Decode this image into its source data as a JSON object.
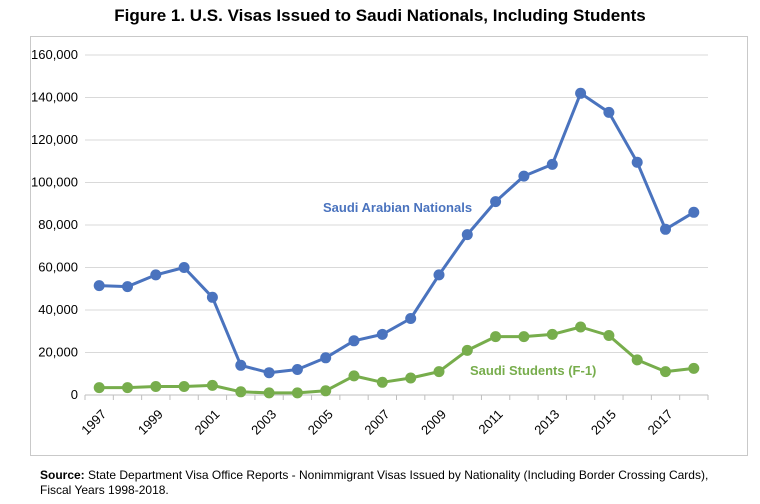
{
  "title": "Figure 1. U.S. Visas Issued to Saudi Nationals, Including Students",
  "source": {
    "label": "Source:",
    "text": " State Department Visa Office Reports - Nonimmigrant Visas Issued by Nationality (Including Border Crossing Cards), Fiscal Years 1998-2018."
  },
  "colors": {
    "nationals": "#4a73be",
    "students": "#77ad4c",
    "grid": "#d9d9d9"
  },
  "chart_data": {
    "type": "line",
    "title": "Figure 1. U.S. Visas Issued to Saudi Nationals, Including Students",
    "x": [
      1997,
      1998,
      1999,
      2000,
      2001,
      2002,
      2003,
      2004,
      2005,
      2006,
      2007,
      2008,
      2009,
      2010,
      2011,
      2012,
      2013,
      2014,
      2015,
      2016,
      2017,
      2018
    ],
    "xticks": [
      "1997",
      "1999",
      "2001",
      "2003",
      "2005",
      "2007",
      "2009",
      "2011",
      "2013",
      "2015",
      "2017"
    ],
    "yticks": [
      "0",
      "20,000",
      "40,000",
      "60,000",
      "80,000",
      "100,000",
      "120,000",
      "140,000",
      "160,000"
    ],
    "ylim": [
      0,
      160000
    ],
    "grid": true,
    "series": [
      {
        "name": "Saudi Arabian Nationals",
        "values": [
          51500,
          51000,
          56500,
          60000,
          46000,
          14000,
          10500,
          12000,
          17500,
          25500,
          28500,
          36000,
          56500,
          75500,
          91000,
          103000,
          108500,
          142000,
          133000,
          109500,
          78000,
          86000
        ]
      },
      {
        "name": "Saudi Students (F-1)",
        "values": [
          3500,
          3500,
          4000,
          4000,
          4500,
          1500,
          1000,
          1000,
          2000,
          9000,
          6000,
          8000,
          11000,
          21000,
          27500,
          27500,
          28500,
          32000,
          28000,
          16500,
          11000,
          12500
        ]
      }
    ]
  }
}
